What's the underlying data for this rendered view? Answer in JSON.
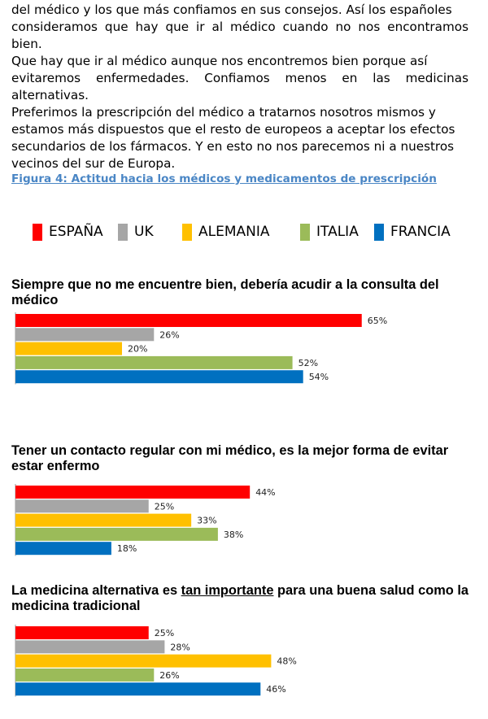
{
  "paragraph": {
    "lines": [
      "del médico y los que más confiamos en sus consejos. Así los españoles",
      "consideramos que hay que ir al médico cuando no nos encontramos bien.",
      "Que hay que ir al médico aunque nos encontremos bien porque así",
      "evitaremos enfermedades. Confiamos menos en las medicinas alternativas.",
      "Preferimos la prescripción del médico a tratarnos nosotros mismos y",
      "estamos más dispuestos que el resto de europeos a aceptar los efectos",
      "secundarios de los fármacos. Y en esto no nos parecemos ni a nuestros",
      "vecinos del sur de Europa."
    ]
  },
  "figure_title": "Figura 4: Actitud hacia los médicos y medicamentos de prescripción",
  "legend": [
    {
      "label": "ESPAÑA",
      "color": "#ff0000"
    },
    {
      "label": "UK",
      "color": "#a6a6a6"
    },
    {
      "label": "ALEMANIA",
      "color": "#ffc000"
    },
    {
      "label": "ITALIA",
      "color": "#9bbb59"
    },
    {
      "label": "FRANCIA",
      "color": "#0070c0"
    }
  ],
  "chart_data": [
    {
      "type": "bar",
      "orientation": "horizontal",
      "title": "Siempre que no me encuentre bien, debería acudir a la consulta del médico",
      "categories": [
        "ESPAÑA",
        "UK",
        "ALEMANIA",
        "ITALIA",
        "FRANCIA"
      ],
      "values": [
        65,
        26,
        20,
        52,
        54
      ],
      "value_labels": [
        "65%",
        "26%",
        "20%",
        "52%",
        "54%"
      ],
      "colors": [
        "#ff0000",
        "#a6a6a6",
        "#ffc000",
        "#9bbb59",
        "#0070c0"
      ]
    },
    {
      "type": "bar",
      "orientation": "horizontal",
      "title": "Tener un contacto regular con mi médico, es la mejor forma de evitar estar enfermo",
      "categories": [
        "ESPAÑA",
        "UK",
        "ALEMANIA",
        "ITALIA",
        "FRANCIA"
      ],
      "values": [
        44,
        25,
        33,
        38,
        18
      ],
      "value_labels": [
        "44%",
        "25%",
        "33%",
        "38%",
        "18%"
      ],
      "colors": [
        "#ff0000",
        "#a6a6a6",
        "#ffc000",
        "#9bbb59",
        "#0070c0"
      ]
    },
    {
      "type": "bar",
      "orientation": "horizontal",
      "title_parts": [
        "La medicina alternativa es ",
        "tan importante",
        " para una buena salud como la medicina tradicional"
      ],
      "categories": [
        "ESPAÑA",
        "UK",
        "ALEMANIA",
        "ITALIA",
        "FRANCIA"
      ],
      "values": [
        25,
        28,
        48,
        26,
        46
      ],
      "value_labels": [
        "25%",
        "28%",
        "48%",
        "26%",
        "46%"
      ],
      "colors": [
        "#ff0000",
        "#a6a6a6",
        "#ffc000",
        "#9bbb59",
        "#0070c0"
      ]
    }
  ]
}
